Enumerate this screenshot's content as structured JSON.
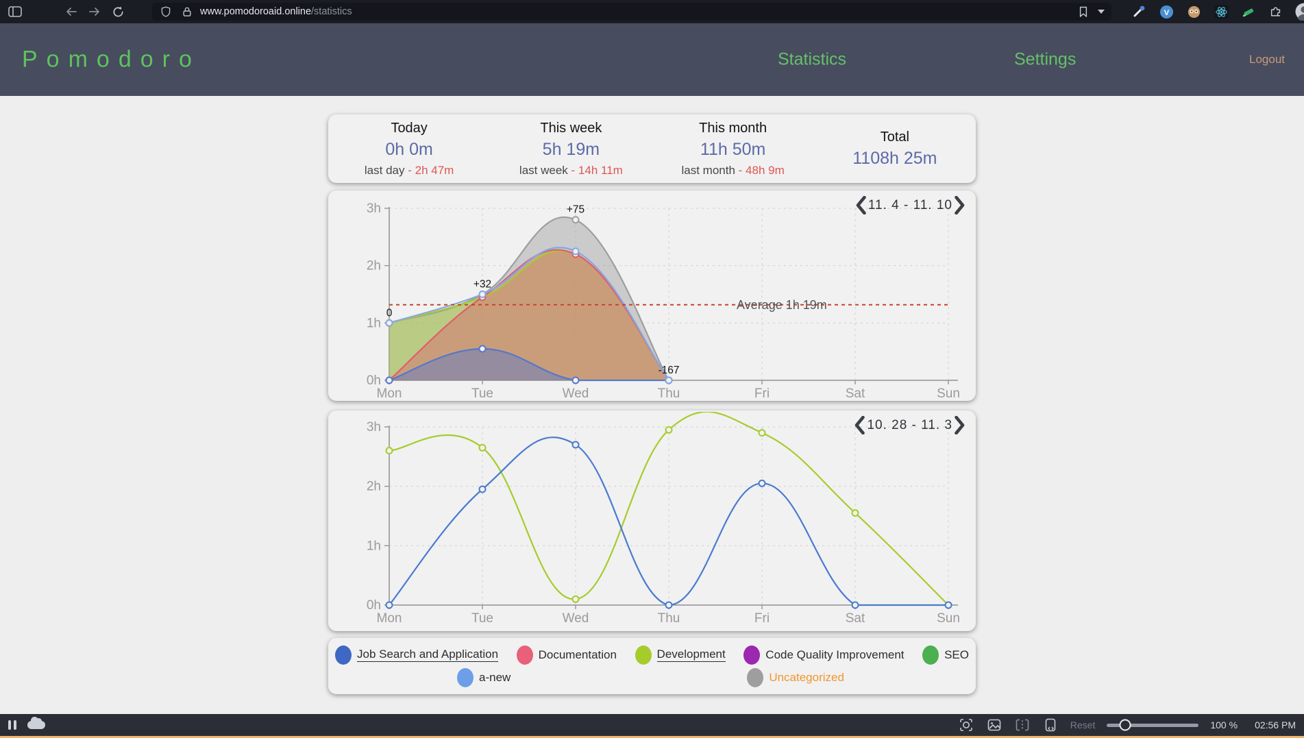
{
  "browser": {
    "url_host": "www.pomodoroaid.online",
    "url_path": "/statistics",
    "icons_left": [
      "sidebar-toggle",
      "back",
      "forward",
      "reload",
      "shield",
      "lock"
    ],
    "icons_right": [
      "bookmark",
      "bookmark-caret",
      "eyedropper-extension",
      "vimium-extension",
      "monkey-face-extension",
      "react-devtools-extension",
      "highlighter-extension",
      "puzzle-extensions",
      "profile-avatar"
    ]
  },
  "header": {
    "logo": "Pomodoro",
    "nav": [
      {
        "label": "Statistics"
      },
      {
        "label": "Settings"
      }
    ],
    "logout_label": "Logout"
  },
  "stats": {
    "cards": [
      {
        "title": "Today",
        "value": "0h 0m",
        "compare_label": "last day",
        "compare_value": "- 2h 47m"
      },
      {
        "title": "This week",
        "value": "5h 19m",
        "compare_label": "last week",
        "compare_value": "- 14h 11m"
      },
      {
        "title": "This month",
        "value": "11h 50m",
        "compare_label": "last month",
        "compare_value": "- 48h 9m"
      },
      {
        "title": "Total",
        "value": "1108h 25m"
      }
    ]
  },
  "chart_data": [
    {
      "type": "area",
      "title": "11. 4 - 11. 10",
      "x": [
        "Mon",
        "Tue",
        "Wed",
        "Thu",
        "Fri",
        "Sat",
        "Sun"
      ],
      "yticks": [
        "0h",
        "1h",
        "2h",
        "3h"
      ],
      "ylim": [
        0,
        3
      ],
      "grid": true,
      "average": {
        "label": "Average 1h 19m",
        "value_hours": 1.317,
        "color": "#c9402e"
      },
      "annotations": [
        {
          "x_index": 0,
          "text": "0"
        },
        {
          "x_index": 1,
          "text": "+32"
        },
        {
          "x_index": 2,
          "text": "+75"
        },
        {
          "x_index": 3,
          "text": "-167"
        }
      ],
      "series": [
        {
          "name": "Uncategorized",
          "color": "#9e9e9e",
          "fill": true,
          "fill_opacity": 0.45,
          "values_hours": [
            1.0,
            1.5,
            2.8,
            0,
            null,
            null,
            null
          ]
        },
        {
          "name": "Development",
          "color": "#a6cc2c",
          "fill": true,
          "fill_opacity": 0.45,
          "values_hours": [
            1.0,
            1.45,
            2.2,
            0,
            null,
            null,
            null
          ]
        },
        {
          "name": "Documentation",
          "color": "#e05c6e",
          "fill": true,
          "fill_opacity": 0.42,
          "values_hours": [
            0,
            1.45,
            2.2,
            0,
            null,
            null,
            null
          ]
        },
        {
          "name": "Job Search and Application",
          "color": "#5577cc",
          "fill": true,
          "fill_opacity": 0.45,
          "values_hours": [
            0,
            0.55,
            0,
            0,
            null,
            null,
            null
          ]
        },
        {
          "name": "a-new",
          "color": "#85a8e4",
          "fill": false,
          "values_hours": [
            1.0,
            1.5,
            2.25,
            0,
            null,
            null,
            null
          ]
        }
      ]
    },
    {
      "type": "line",
      "title": "10. 28 - 11. 3",
      "x": [
        "Mon",
        "Tue",
        "Wed",
        "Thu",
        "Fri",
        "Sat",
        "Sun"
      ],
      "yticks": [
        "0h",
        "1h",
        "2h",
        "3h"
      ],
      "ylim": [
        0,
        3
      ],
      "grid": true,
      "series": [
        {
          "name": "Development",
          "color": "#a6cc2c",
          "fill": false,
          "values_hours": [
            2.6,
            2.65,
            0.1,
            2.95,
            2.9,
            1.55,
            0
          ]
        },
        {
          "name": "Job Search and Application",
          "color": "#4a7ad0",
          "fill": false,
          "values_hours": [
            0,
            1.95,
            2.7,
            0,
            2.05,
            0,
            0
          ]
        }
      ]
    }
  ],
  "legend": {
    "items": [
      {
        "label": "Job Search and Application",
        "color": "#3e68c4",
        "underlined": true,
        "row": 1
      },
      {
        "label": "Documentation",
        "color": "#e8607a",
        "underlined": false,
        "row": 1
      },
      {
        "label": "Development",
        "color": "#a6cc2c",
        "underlined": true,
        "row": 1
      },
      {
        "label": "Code Quality Improvement",
        "color": "#9c27b0",
        "underlined": false,
        "row": 1
      },
      {
        "label": "SEO",
        "color": "#4caf50",
        "underlined": false,
        "row": 1
      },
      {
        "label": "a-new",
        "color": "#6c9fe8",
        "underlined": false,
        "row": 2
      },
      {
        "label": "Uncategorized",
        "color": "#9e9e9e",
        "underlined": false,
        "row": 2,
        "label_color": "#f1962e"
      }
    ]
  },
  "taskbar": {
    "icons_left": [
      "pause",
      "cloud"
    ],
    "icons_right": [
      "focus-capture",
      "screenshot",
      "split-view",
      "device-code"
    ],
    "reset_label": "Reset",
    "zoom_level": "100 %",
    "time": "02:56 PM"
  }
}
